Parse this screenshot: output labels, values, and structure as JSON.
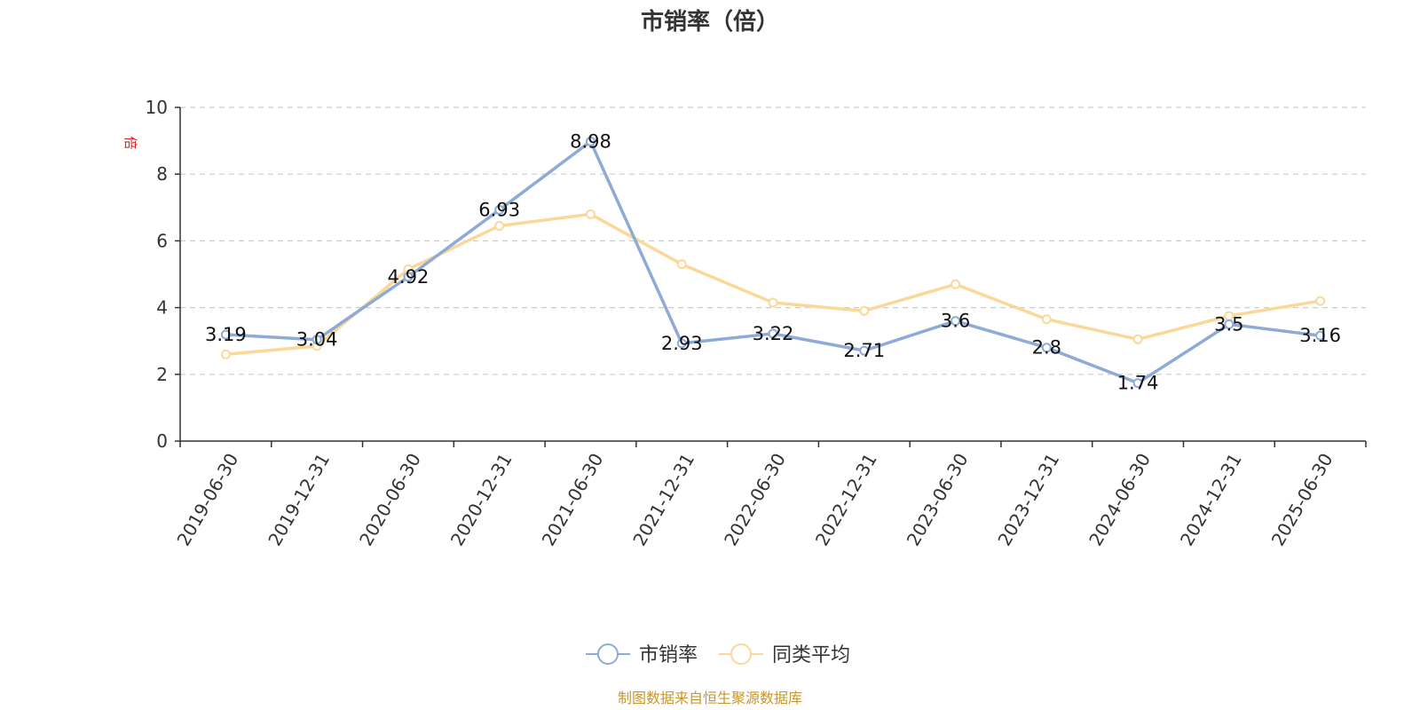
{
  "chart_data": {
    "type": "line",
    "title": "市销率（倍）",
    "ylabel": "倍",
    "ylim": [
      0,
      10
    ],
    "yticks": [
      0,
      2,
      4,
      6,
      8,
      10
    ],
    "grid": "horizontal dashed",
    "legend_position": "bottom-center",
    "categories": [
      "2019-06-30",
      "2019-12-31",
      "2020-06-30",
      "2020-12-31",
      "2021-06-30",
      "2021-12-31",
      "2022-06-30",
      "2022-12-31",
      "2023-06-30",
      "2023-12-31",
      "2024-06-30",
      "2024-12-31",
      "2025-06-30"
    ],
    "series": [
      {
        "name": "市销率",
        "color": "#8eabd6",
        "labeled": true,
        "values": [
          3.19,
          3.04,
          4.92,
          6.93,
          8.98,
          2.93,
          3.22,
          2.71,
          3.6,
          2.8,
          1.74,
          3.5,
          3.16
        ]
      },
      {
        "name": "同类平均",
        "color": "#fcd898",
        "labeled": false,
        "values": [
          2.6,
          2.85,
          5.15,
          6.45,
          6.8,
          5.3,
          4.15,
          3.9,
          4.7,
          3.65,
          3.05,
          3.75,
          4.2
        ]
      }
    ]
  },
  "colors": {
    "unit": "#e02020",
    "source": "#c9962a",
    "axis": "#333333",
    "grid": "#cccccc"
  },
  "source_text": "制图数据来自恒生聚源数据库"
}
